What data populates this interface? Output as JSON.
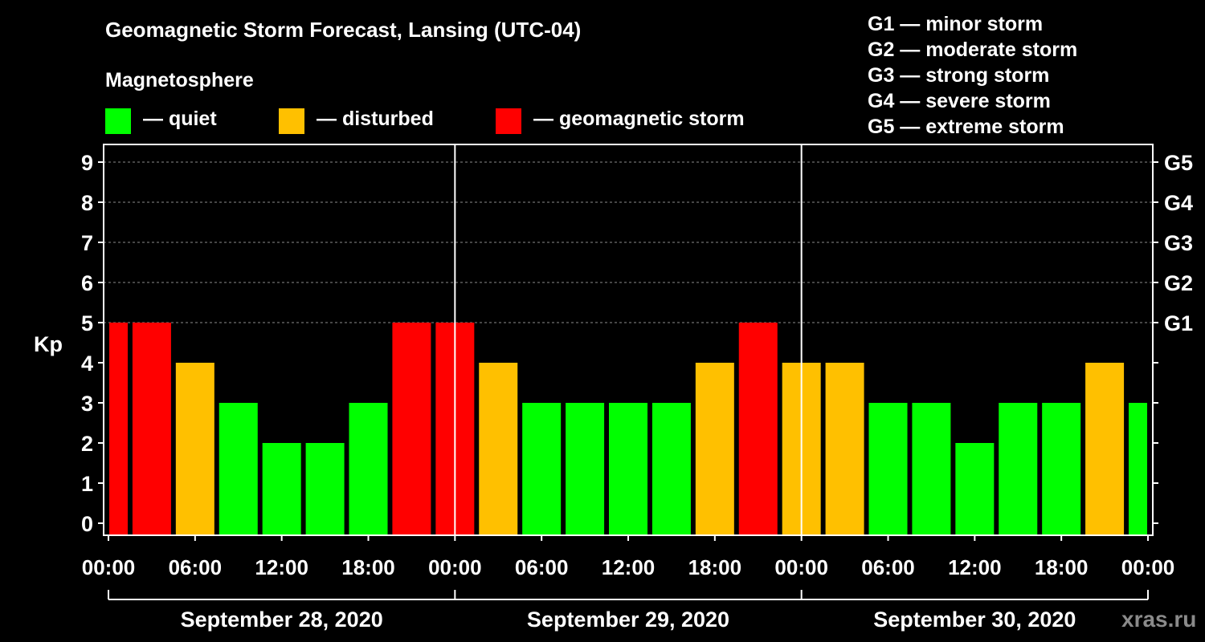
{
  "header": {
    "title": "Geomagnetic Storm Forecast, Lansing (UTC-04)",
    "subtitle": "Magnetosphere"
  },
  "legend": [
    {
      "label": "— quiet",
      "color": "#00ff00"
    },
    {
      "label": "— disturbed",
      "color": "#ffc000"
    },
    {
      "label": "— geomagnetic storm",
      "color": "#ff0000"
    }
  ],
  "storm_scale": [
    "G1 — minor storm",
    "G2 — moderate storm",
    "G3 — strong storm",
    "G4 — severe storm",
    "G5 — extreme storm"
  ],
  "watermark": "xras.ru",
  "chart_data": {
    "type": "bar",
    "ylabel": "Kp",
    "ylim": [
      0,
      9
    ],
    "yticks": [
      "0",
      "1",
      "2",
      "3",
      "4",
      "5",
      "6",
      "7",
      "8",
      "9"
    ],
    "right_ticks": [
      {
        "value": 5,
        "label": "G1"
      },
      {
        "value": 6,
        "label": "G2"
      },
      {
        "value": 7,
        "label": "G3"
      },
      {
        "value": 8,
        "label": "G4"
      },
      {
        "value": 9,
        "label": "G5"
      }
    ],
    "xtick_labels": [
      "00:00",
      "06:00",
      "12:00",
      "18:00",
      "00:00",
      "06:00",
      "12:00",
      "18:00",
      "00:00",
      "06:00",
      "12:00",
      "18:00",
      "00:00"
    ],
    "days": [
      "September 28, 2020",
      "September 29, 2020",
      "September 30, 2020"
    ],
    "grid": "horizontal dashed at 5-9",
    "colors": {
      "quiet": "#00ff00",
      "disturbed": "#ffc000",
      "storm": "#ff0000"
    },
    "values": [
      5,
      5,
      4,
      3,
      2,
      2,
      3,
      5,
      5,
      4,
      3,
      3,
      3,
      3,
      4,
      5,
      4,
      4,
      3,
      3,
      2,
      3,
      3,
      4,
      3
    ]
  }
}
